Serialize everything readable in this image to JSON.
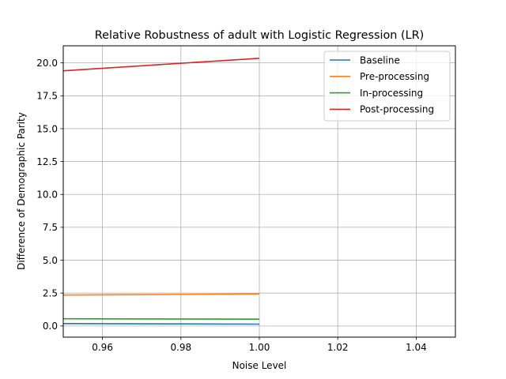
{
  "chart_data": {
    "type": "line",
    "title": "Relative Robustness of adult with Logistic Regression (LR)",
    "xlabel": "Noise Level",
    "ylabel": "Difference of Demographic Parity",
    "xlim": [
      0.95,
      1.05
    ],
    "ylim": [
      -0.85,
      21.3
    ],
    "xticks": [
      0.96,
      0.98,
      1.0,
      1.02,
      1.04
    ],
    "xtick_labels": [
      "0.96",
      "0.98",
      "1.00",
      "1.02",
      "1.04"
    ],
    "yticks": [
      0.0,
      2.5,
      5.0,
      7.5,
      10.0,
      12.5,
      15.0,
      17.5,
      20.0
    ],
    "ytick_labels": [
      "0.0",
      "2.5",
      "5.0",
      "7.5",
      "10.0",
      "12.5",
      "15.0",
      "17.5",
      "20.0"
    ],
    "grid": true,
    "legend_position": "top-right",
    "series": [
      {
        "name": "Baseline",
        "color": "#1f77b4",
        "x": [
          0.95,
          1.0
        ],
        "y": [
          0.18,
          0.14
        ]
      },
      {
        "name": "Pre-processing",
        "color": "#ff7f0e",
        "x": [
          0.95,
          1.0
        ],
        "y": [
          2.35,
          2.43
        ]
      },
      {
        "name": "In-processing",
        "color": "#2ca02c",
        "x": [
          0.95,
          1.0
        ],
        "y": [
          0.55,
          0.52
        ]
      },
      {
        "name": "Post-processing",
        "color": "#d62728",
        "x": [
          0.95,
          1.0
        ],
        "y": [
          19.4,
          20.35
        ]
      }
    ]
  }
}
